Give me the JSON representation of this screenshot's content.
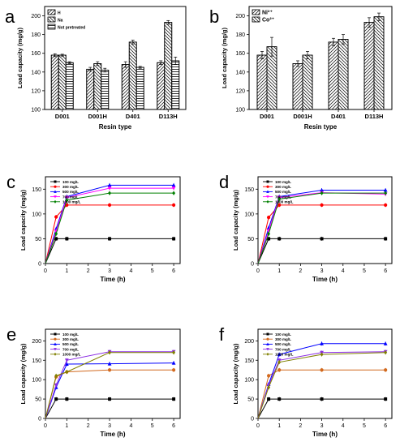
{
  "chart_data": [
    {
      "panel": "a",
      "type": "bar",
      "xlabel": "Resin type",
      "ylabel": "Load capacity (mg/g)",
      "ylim": [
        100,
        210
      ],
      "yticks": [
        100,
        120,
        140,
        160,
        180,
        200
      ],
      "categories": [
        "D001",
        "D001H",
        "D401",
        "D113H"
      ],
      "legend": "top-left",
      "series": [
        {
          "name": "H",
          "values": [
            158,
            143,
            148,
            150
          ],
          "errors": [
            1.5,
            2,
            3,
            2
          ],
          "pattern": "diag"
        },
        {
          "name": "Na",
          "values": [
            158,
            149,
            172,
            193
          ],
          "errors": [
            1,
            2,
            2,
            2
          ],
          "pattern": "back"
        },
        {
          "name": "Not pretreated",
          "values": [
            150,
            142,
            145,
            152
          ],
          "errors": [
            1,
            2,
            1,
            4
          ],
          "pattern": "horiz"
        }
      ]
    },
    {
      "panel": "b",
      "type": "bar",
      "xlabel": "Resin type",
      "ylabel": "Load capacity (mg/g)",
      "ylim": [
        100,
        210
      ],
      "yticks": [
        100,
        120,
        140,
        160,
        180,
        200
      ],
      "categories": [
        "D001",
        "D001H",
        "D401",
        "D113H"
      ],
      "legend": "top-left",
      "series": [
        {
          "name": "Ni²⁺",
          "values": [
            158,
            149,
            172,
            193
          ],
          "errors": [
            4,
            3,
            4,
            5
          ],
          "pattern": "diag"
        },
        {
          "name": "Co²⁺",
          "values": [
            167,
            158,
            175,
            199
          ],
          "errors": [
            10,
            4,
            5,
            4
          ],
          "pattern": "back"
        }
      ]
    },
    {
      "panel": "c",
      "type": "line",
      "xlabel": "Time (h)",
      "ylabel": "Load capacity (mg/g)",
      "xlim": [
        0,
        6.3
      ],
      "ylim": [
        0,
        175
      ],
      "xticks": [
        0,
        1,
        2,
        3,
        4,
        5,
        6
      ],
      "yticks": [
        0,
        50,
        100,
        150
      ],
      "x": [
        0,
        0.5,
        1,
        3,
        6
      ],
      "legend": "top-left",
      "series": [
        {
          "name": "100 mg/L",
          "values": [
            0,
            50,
            50,
            50,
            50
          ],
          "color": "#000000",
          "marker": "square"
        },
        {
          "name": "300 mg/L",
          "values": [
            0,
            94,
            118,
            118,
            118
          ],
          "color": "#ff0000",
          "marker": "circle"
        },
        {
          "name": "500 mg/L",
          "values": [
            0,
            70,
            135,
            158,
            158
          ],
          "color": "#0000ff",
          "marker": "triangle"
        },
        {
          "name": "700 mg/L",
          "values": [
            0,
            65,
            133,
            152,
            152
          ],
          "color": "#ff00ff",
          "marker": "triangle-down"
        },
        {
          "name": "1000 mg/L",
          "values": [
            0,
            60,
            128,
            142,
            142
          ],
          "color": "#008000",
          "marker": "diamond"
        }
      ]
    },
    {
      "panel": "d",
      "type": "line",
      "xlabel": "Time (h)",
      "ylabel": "Load capacity (mg/g)",
      "xlim": [
        0,
        6.3
      ],
      "ylim": [
        0,
        175
      ],
      "xticks": [
        0,
        1,
        2,
        3,
        4,
        5,
        6
      ],
      "yticks": [
        0,
        50,
        100,
        150
      ],
      "x": [
        0,
        0.5,
        1,
        3,
        6
      ],
      "legend": "top-left",
      "series": [
        {
          "name": "100 mg/L",
          "values": [
            0,
            50,
            50,
            50,
            50
          ],
          "color": "#000000",
          "marker": "square"
        },
        {
          "name": "300 mg/L",
          "values": [
            0,
            93,
            118,
            118,
            118
          ],
          "color": "#ff0000",
          "marker": "circle"
        },
        {
          "name": "500 mg/L",
          "values": [
            0,
            72,
            135,
            148,
            148
          ],
          "color": "#0000ff",
          "marker": "triangle"
        },
        {
          "name": "700 mg/L",
          "values": [
            0,
            66,
            133,
            143,
            140
          ],
          "color": "#ff00ff",
          "marker": "triangle-down"
        },
        {
          "name": "1000 mg/L",
          "values": [
            0,
            60,
            130,
            142,
            142
          ],
          "color": "#008000",
          "marker": "diamond"
        }
      ]
    },
    {
      "panel": "e",
      "type": "line",
      "xlabel": "Time (h)",
      "ylabel": "Load capacity (mg/g)",
      "xlim": [
        0,
        6.3
      ],
      "ylim": [
        0,
        230
      ],
      "xticks": [
        0,
        1,
        2,
        3,
        4,
        5,
        6
      ],
      "yticks": [
        0,
        50,
        100,
        150,
        200
      ],
      "x": [
        0,
        0.5,
        1,
        3,
        6
      ],
      "legend": "top-left",
      "series": [
        {
          "name": "100 mg/L",
          "values": [
            0,
            50,
            50,
            50,
            50
          ],
          "color": "#000000",
          "marker": "square"
        },
        {
          "name": "300 mg/L",
          "values": [
            0,
            107,
            120,
            125,
            125
          ],
          "color": "#d2691e",
          "marker": "circle"
        },
        {
          "name": "500 mg/L",
          "values": [
            0,
            80,
            140,
            141,
            143
          ],
          "color": "#0000ff",
          "marker": "triangle"
        },
        {
          "name": "700 mg/L",
          "values": [
            0,
            86,
            150,
            172,
            172
          ],
          "color": "#8a2be2",
          "marker": "triangle-down"
        },
        {
          "name": "1000 mg/L",
          "values": [
            0,
            110,
            120,
            170,
            170
          ],
          "color": "#808000",
          "marker": "diamond"
        }
      ]
    },
    {
      "panel": "f",
      "type": "line",
      "xlabel": "Time (h)",
      "ylabel": "Load capacity (mg/g)",
      "xlim": [
        0,
        6.3
      ],
      "ylim": [
        0,
        230
      ],
      "xticks": [
        0,
        1,
        2,
        3,
        4,
        5,
        6
      ],
      "yticks": [
        0,
        50,
        100,
        150,
        200
      ],
      "x": [
        0,
        0.5,
        1,
        3,
        6
      ],
      "legend": "top-left",
      "series": [
        {
          "name": "100 mg/L",
          "values": [
            0,
            50,
            50,
            50,
            50
          ],
          "color": "#000000",
          "marker": "square"
        },
        {
          "name": "300 mg/L",
          "values": [
            0,
            110,
            125,
            125,
            125
          ],
          "color": "#d2691e",
          "marker": "circle"
        },
        {
          "name": "500 mg/L",
          "values": [
            0,
            88,
            165,
            193,
            193
          ],
          "color": "#0000ff",
          "marker": "triangle"
        },
        {
          "name": "700 mg/L",
          "values": [
            0,
            85,
            150,
            170,
            172
          ],
          "color": "#8a2be2",
          "marker": "triangle-down"
        },
        {
          "name": "1000 mg/L",
          "values": [
            0,
            80,
            145,
            165,
            170
          ],
          "color": "#808000",
          "marker": "diamond"
        }
      ]
    }
  ]
}
